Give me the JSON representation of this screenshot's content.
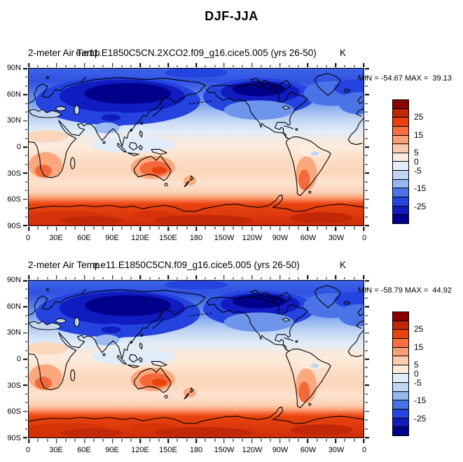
{
  "figure_title": "DJF-JJA",
  "panels": [
    {
      "left_title": "2-meter Air Temp",
      "center_title": "e.e11.E1850C5CN.2XCO2.f09_g16.cice5.005 (yrs 26-50)",
      "unit": "K",
      "stats": "MIN = -54.67 MAX =  39.13"
    },
    {
      "left_title": "2-meter Air Temp",
      "center_title": "e.e11.E1850C5CN.f09_g16.cice5.005 (yrs 26-50)",
      "unit": "K",
      "stats": "MIN = -58.79 MAX =  44.92"
    }
  ],
  "axes": {
    "x_ticklabels": [
      "0",
      "30E",
      "60E",
      "90E",
      "120E",
      "150E",
      "180",
      "150W",
      "120W",
      "90W",
      "60W",
      "30W",
      "0"
    ],
    "y_ticklabels": [
      "90N",
      "60N",
      "30N",
      "0",
      "30S",
      "60S",
      "90S"
    ],
    "x_minor_divisions": 36,
    "x_major_count": 13,
    "y_minor_divisions": 18,
    "y_major_count": 7
  },
  "colorbar": {
    "colors_top_to_bottom": [
      "#8B0000",
      "#C1260A",
      "#E8430E",
      "#FC6E3F",
      "#FBA076",
      "#FCCBAD",
      "#FDEBDB",
      "#E1ECF9",
      "#BFD4F2",
      "#95B6EF",
      "#4A73E8",
      "#2443DF",
      "#101CC0",
      "#00008B"
    ],
    "labels": [
      {
        "text": "25",
        "boundary_index": 2
      },
      {
        "text": "15",
        "boundary_index": 4
      },
      {
        "text": "5",
        "boundary_index": 6
      },
      {
        "text": "0",
        "boundary_index": 7
      },
      {
        "text": "-5",
        "boundary_index": 8
      },
      {
        "text": "-15",
        "boundary_index": 10
      },
      {
        "text": "-25",
        "boundary_index": 12
      }
    ]
  },
  "chart_data": [
    {
      "type": "heatmap",
      "subtype": "filled-contour-world-map",
      "title": "DJF-JJA",
      "left_title": "2-meter Air Temp",
      "center_title": "e.e11.E1850C5CN.2XCO2.f09_g16.cice5.005 (yrs 26-50)",
      "units": "K",
      "min": -54.67,
      "max": 39.13,
      "contour_levels": [
        -30,
        -25,
        -20,
        -15,
        -10,
        -5,
        0,
        5,
        10,
        15,
        20,
        25,
        30
      ],
      "palette_low_to_high": [
        "#00008B",
        "#101CC0",
        "#2443DF",
        "#4A73E8",
        "#95B6EF",
        "#BFD4F2",
        "#E1ECF9",
        "#FDEBDB",
        "#FCCBAD",
        "#FBA076",
        "#FC6E3F",
        "#E8430E",
        "#C1260A",
        "#8B0000"
      ],
      "x_ticks": [
        "0",
        "30E",
        "60E",
        "90E",
        "120E",
        "150E",
        "180",
        "150W",
        "120W",
        "90W",
        "60W",
        "30W",
        "0"
      ],
      "y_ticks": [
        "90N",
        "60N",
        "30N",
        "0",
        "30S",
        "60S",
        "90S"
      ],
      "projection": "equirectangular lat-lon, longitude 0E-360E left to right, 90N at top",
      "grid": false,
      "legend_position": "right vertical labelbar",
      "pattern_summary": "Strong negative values (deep blue, below -30 K) over Siberia and northern Canada; moderate negative over NH mid-latitudes; near zero (cream/pale blue) in the tropics; positive (peach to orange, 5-15 K) over SH subtropical land (Australia, southern Africa, Patagonia); strongly positive (15-30+ K, orange-red) poleward of ~60S over Antarctica."
    },
    {
      "type": "heatmap",
      "subtype": "filled-contour-world-map",
      "title": "DJF-JJA",
      "left_title": "2-meter Air Temp",
      "center_title": "e.e11.E1850C5CN.f09_g16.cice5.005 (yrs 26-50)",
      "units": "K",
      "min": -58.79,
      "max": 44.92,
      "contour_levels": [
        -30,
        -25,
        -20,
        -15,
        -10,
        -5,
        0,
        5,
        10,
        15,
        20,
        25,
        30
      ],
      "palette_low_to_high": [
        "#00008B",
        "#101CC0",
        "#2443DF",
        "#4A73E8",
        "#95B6EF",
        "#BFD4F2",
        "#E1ECF9",
        "#FDEBDB",
        "#FCCBAD",
        "#FBA076",
        "#FC6E3F",
        "#E8430E",
        "#C1260A",
        "#8B0000"
      ],
      "x_ticks": [
        "0",
        "30E",
        "60E",
        "90E",
        "120E",
        "150E",
        "180",
        "150W",
        "120W",
        "90W",
        "60W",
        "30W",
        "0"
      ],
      "y_ticks": [
        "90N",
        "60N",
        "30N",
        "0",
        "30S",
        "60S",
        "90S"
      ],
      "projection": "equirectangular lat-lon, longitude 0E-360E left to right, 90N at top",
      "grid": false,
      "legend_position": "right vertical labelbar",
      "pattern_summary": "Same seasonal-difference pattern as the 2XCO2 case: deep blue minima over NH high-latitude continents, near-zero tropics, orange maxima over SH continents and a strong red band over the Antarctic region."
    }
  ]
}
